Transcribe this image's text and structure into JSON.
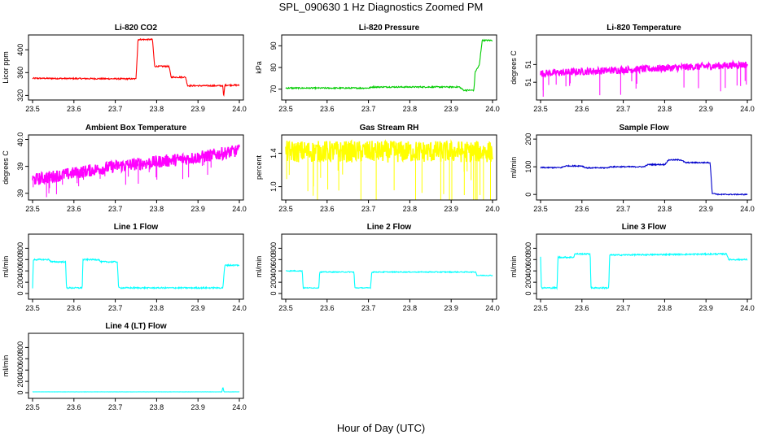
{
  "title": "SPL_090630  1 Hz Diagnostics Zoomed PM",
  "xlabel": "Hour of Day (UTC)",
  "chart_data": [
    {
      "type": "line",
      "title": "Li-820 CO2",
      "ylabel": "Licor ppm",
      "color": "#ff0000",
      "xlim": [
        23.5,
        24.0
      ],
      "ylim": [
        312,
        426
      ],
      "xticks": [
        "23.5",
        "23.6",
        "23.7",
        "23.8",
        "23.9",
        "24.0"
      ],
      "yticks": [
        320,
        360,
        400
      ],
      "series": [
        {
          "name": "CO2",
          "x": [
            23.5,
            23.75,
            23.755,
            23.79,
            23.795,
            23.83,
            23.835,
            23.87,
            23.875,
            23.96,
            23.962,
            23.965,
            24.0
          ],
          "y": [
            350,
            349,
            418,
            418,
            371,
            371,
            352,
            352,
            337,
            337,
            316,
            338,
            338
          ]
        }
      ]
    },
    {
      "type": "line",
      "title": "Li-820 Pressure",
      "ylabel": "kPa",
      "color": "#00cc00",
      "xlim": [
        23.5,
        24.0
      ],
      "ylim": [
        65,
        95
      ],
      "xticks": [
        "23.5",
        "23.6",
        "23.7",
        "23.8",
        "23.9",
        "24.0"
      ],
      "yticks": [
        70,
        80,
        90
      ],
      "series": [
        {
          "name": "Pressure",
          "x": [
            23.5,
            23.7,
            23.71,
            23.92,
            23.93,
            23.955,
            23.958,
            23.968,
            23.975,
            24.0
          ],
          "y": [
            70.5,
            70.5,
            71,
            71,
            69.5,
            69.5,
            78,
            81,
            92.5,
            92.5
          ]
        }
      ]
    },
    {
      "type": "line",
      "title": "Li-820 Temperature",
      "ylabel": "degrees C",
      "color": "#ff00ff",
      "xlim": [
        23.5,
        24.0
      ],
      "ylim": [
        51.3,
        51.52
      ],
      "xticks": [
        "23.5",
        "23.6",
        "23.7",
        "23.8",
        "23.9",
        "24.0"
      ],
      "yticks": [
        51.36,
        51.42
      ],
      "series": [
        {
          "name": "Temperature",
          "x": [
            23.5,
            24.0
          ],
          "y": [
            51.39,
            51.42
          ]
        }
      ]
    },
    {
      "type": "line",
      "title": "Ambient Box Temperature",
      "ylabel": "degrees C",
      "color": "#ff00ff",
      "xlim": [
        23.5,
        24.0
      ],
      "ylim": [
        38.65,
        40.1
      ],
      "xticks": [
        "23.5",
        "23.6",
        "23.7",
        "23.8",
        "23.9",
        "24.0"
      ],
      "yticks": [
        38.8,
        39.4,
        40.0
      ],
      "series": [
        {
          "name": "Box Temperature",
          "x": [
            23.5,
            23.6,
            23.7,
            23.8,
            23.9,
            24.0
          ],
          "y": [
            39.1,
            39.25,
            39.4,
            39.5,
            39.6,
            39.75
          ]
        }
      ]
    },
    {
      "type": "line",
      "title": "Gas Stream RH",
      "ylabel": "percent",
      "color": "#ffff00",
      "xlim": [
        23.5,
        24.0
      ],
      "ylim": [
        0.84,
        1.62
      ],
      "xticks": [
        "23.5",
        "23.6",
        "23.7",
        "23.8",
        "23.9",
        "24.0"
      ],
      "yticks": [
        1.0,
        1.4
      ],
      "series": [
        {
          "name": "RH",
          "x": [
            23.5,
            24.0
          ],
          "y": [
            1.42,
            1.42
          ]
        }
      ]
    },
    {
      "type": "line",
      "title": "Sample Flow",
      "ylabel": "ml/min",
      "color": "#0000cc",
      "xlim": [
        23.5,
        24.0
      ],
      "ylim": [
        -20,
        215
      ],
      "xticks": [
        "23.5",
        "23.6",
        "23.7",
        "23.8",
        "23.9",
        "24.0"
      ],
      "yticks": [
        0,
        100,
        200
      ],
      "series": [
        {
          "name": "Sample Flow",
          "x": [
            23.5,
            23.55,
            23.56,
            23.6,
            23.61,
            23.66,
            23.67,
            23.75,
            23.76,
            23.8,
            23.81,
            23.84,
            23.85,
            23.91,
            23.915,
            23.93,
            24.0
          ],
          "y": [
            97,
            97,
            103,
            103,
            96,
            96,
            100,
            100,
            108,
            108,
            125,
            125,
            115,
            115,
            5,
            0,
            0
          ]
        }
      ]
    },
    {
      "type": "line",
      "title": "Line 1 Flow",
      "ylabel": "ml/min",
      "color": "#00ffff",
      "xlim": [
        23.5,
        24.0
      ],
      "ylim": [
        -100,
        1050
      ],
      "xticks": [
        "23.5",
        "23.6",
        "23.7",
        "23.8",
        "23.9",
        "24.0"
      ],
      "yticks": [
        0,
        200,
        400,
        600,
        800
      ],
      "series": [
        {
          "name": "Line 1",
          "x": [
            23.5,
            23.502,
            23.54,
            23.545,
            23.58,
            23.582,
            23.62,
            23.622,
            23.66,
            23.665,
            23.705,
            23.708,
            23.96,
            23.965,
            24.0
          ],
          "y": [
            100,
            600,
            600,
            560,
            560,
            100,
            100,
            600,
            600,
            560,
            560,
            100,
            100,
            500,
            500
          ]
        }
      ]
    },
    {
      "type": "line",
      "title": "Line 2 Flow",
      "ylabel": "ml/min",
      "color": "#00ffff",
      "xlim": [
        23.5,
        24.0
      ],
      "ylim": [
        -100,
        1050
      ],
      "xticks": [
        "23.5",
        "23.6",
        "23.7",
        "23.8",
        "23.9",
        "24.0"
      ],
      "yticks": [
        0,
        200,
        400,
        600,
        800
      ],
      "series": [
        {
          "name": "Line 2",
          "x": [
            23.5,
            23.54,
            23.542,
            23.58,
            23.582,
            23.665,
            23.667,
            23.705,
            23.708,
            23.96,
            23.962,
            24.0
          ],
          "y": [
            400,
            400,
            100,
            100,
            380,
            380,
            100,
            100,
            380,
            380,
            320,
            320
          ]
        }
      ]
    },
    {
      "type": "line",
      "title": "Line 3 Flow",
      "ylabel": "ml/min",
      "color": "#00ffff",
      "xlim": [
        23.5,
        24.0
      ],
      "ylim": [
        -100,
        1050
      ],
      "xticks": [
        "23.5",
        "23.6",
        "23.7",
        "23.8",
        "23.9",
        "24.0"
      ],
      "yticks": [
        0,
        200,
        400,
        600,
        800
      ],
      "series": [
        {
          "name": "Line 3",
          "x": [
            23.5,
            23.502,
            23.54,
            23.542,
            23.58,
            23.583,
            23.62,
            23.622,
            23.665,
            23.667,
            23.95,
            23.955,
            24.0
          ],
          "y": [
            650,
            100,
            100,
            640,
            640,
            700,
            700,
            100,
            100,
            680,
            700,
            600,
            600
          ]
        }
      ]
    },
    {
      "type": "line",
      "title": "Line 4 (LT) Flow",
      "ylabel": "ml/min",
      "color": "#00ffff",
      "xlim": [
        23.5,
        24.0
      ],
      "ylim": [
        -100,
        1050
      ],
      "xticks": [
        "23.5",
        "23.6",
        "23.7",
        "23.8",
        "23.9",
        "24.0"
      ],
      "yticks": [
        0,
        200,
        400,
        600,
        800
      ],
      "series": [
        {
          "name": "Line 4",
          "x": [
            23.5,
            23.958,
            23.96,
            23.963,
            24.0
          ],
          "y": [
            15,
            15,
            100,
            15,
            15
          ]
        }
      ]
    }
  ]
}
